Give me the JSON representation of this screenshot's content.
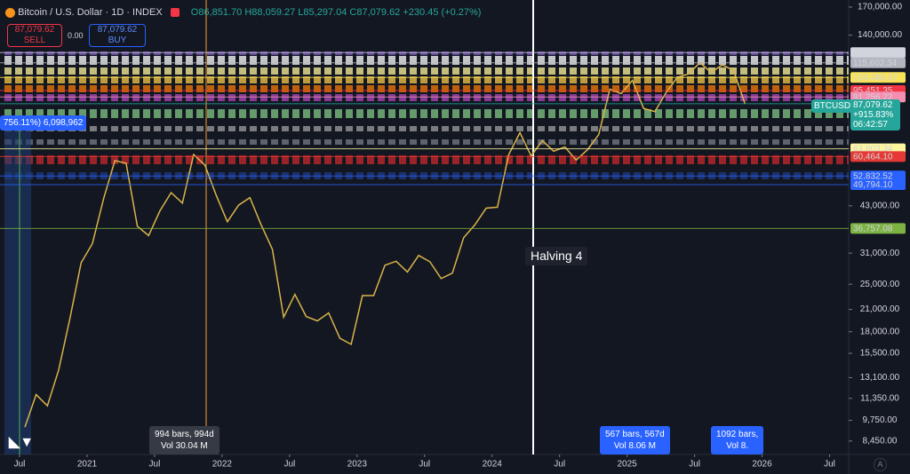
{
  "header": {
    "symbol": "Bitcoin / U.S. Dollar · 1D · INDEX",
    "open": "O86,851.70",
    "high": "H88,059.27",
    "low": "L85,297.04",
    "close": "C87,079.62",
    "change": "+230.45 (+0.27%)",
    "sell_price": "87,079.62",
    "sell": "SELL",
    "spread": "0.00",
    "buy_price": "87,079.62",
    "buy": "BUY"
  },
  "annotations": {
    "halving": "Halving 4",
    "range1_bars": "994 bars, 994d",
    "range1_vol": "Vol 30.04 M",
    "range2_bars": "567 bars, 567d",
    "range2_vol": "Vol 8.06 M",
    "range3_bars": "1092 bars,",
    "range3_vol": "Vol 8.",
    "measure": "756.11%) 6,098,962",
    "symbol_tag": "BTCUSD",
    "pct_change": "+915.83%",
    "countdown": "06:42:57"
  },
  "chart_data": {
    "type": "line",
    "log_scale": true,
    "color": "#d9b44a",
    "x": [
      "2020-07",
      "2020-08",
      "2020-09",
      "2020-10",
      "2020-11",
      "2020-12",
      "2021-01",
      "2021-02",
      "2021-03",
      "2021-04",
      "2021-05",
      "2021-06",
      "2021-07",
      "2021-08",
      "2021-09",
      "2021-10",
      "2021-11",
      "2021-12",
      "2022-01",
      "2022-02",
      "2022-03",
      "2022-04",
      "2022-05",
      "2022-06",
      "2022-07",
      "2022-08",
      "2022-09",
      "2022-10",
      "2022-11",
      "2022-12",
      "2023-01",
      "2023-02",
      "2023-03",
      "2023-04",
      "2023-05",
      "2023-06",
      "2023-07",
      "2023-08",
      "2023-09",
      "2023-10",
      "2023-11",
      "2023-12",
      "2024-01",
      "2024-02",
      "2024-03",
      "2024-04",
      "2024-05",
      "2024-06",
      "2024-07",
      "2024-08",
      "2024-09",
      "2024-10",
      "2024-11",
      "2024-12",
      "2025-01",
      "2025-02",
      "2025-03",
      "2025-04",
      "2025-05",
      "2025-06",
      "2025-07",
      "2025-08",
      "2025-09",
      "2025-10",
      "2025-11"
    ],
    "series": [
      {
        "name": "BTCUSD",
        "color": "#d9b44a",
        "values": [
          9300,
          11650,
          10780,
          13800,
          19700,
          29000,
          33100,
          45200,
          58800,
          57700,
          37300,
          35000,
          41500,
          47100,
          43800,
          61300,
          57000,
          46300,
          38500,
          43200,
          45500,
          37700,
          31800,
          19900,
          23300,
          20000,
          19400,
          20500,
          17200,
          16500,
          23100,
          23100,
          28500,
          29300,
          27200,
          30500,
          29200,
          26000,
          27000,
          34500,
          37700,
          42300,
          42600,
          61200,
          71300,
          60700,
          67500,
          62700,
          64600,
          59000,
          63300,
          70300,
          96400,
          93400,
          102400,
          84300,
          82500,
          94200,
          104600,
          107100,
          115700,
          108200,
          114000,
          109500,
          87080
        ]
      }
    ],
    "ylim": [
      7700,
      178500
    ],
    "yticks": [
      {
        "value": 170000,
        "label": "170,000.00"
      },
      {
        "value": 140000,
        "label": "140,000.00"
      },
      {
        "value": 43000,
        "label": "43,000.00"
      },
      {
        "value": 31000,
        "label": "31,000.00"
      },
      {
        "value": 25000,
        "label": "25,000.00"
      },
      {
        "value": 21000,
        "label": "21,000.00"
      },
      {
        "value": 18000,
        "label": "18,000.00"
      },
      {
        "value": 15500,
        "label": "15,500.00"
      },
      {
        "value": 13100,
        "label": "13,100.00"
      },
      {
        "value": 11350,
        "label": "11,350.00"
      },
      {
        "value": 9750,
        "label": "9,750.00"
      },
      {
        "value": 8450,
        "label": "8,450.00"
      }
    ],
    "xticks": [
      {
        "value": "2020-07",
        "label": "Jul"
      },
      {
        "value": "2021-01",
        "label": "2021"
      },
      {
        "value": "2021-07",
        "label": "Jul"
      },
      {
        "value": "2022-01",
        "label": "2022"
      },
      {
        "value": "2022-07",
        "label": "Jul"
      },
      {
        "value": "2023-01",
        "label": "2023"
      },
      {
        "value": "2023-07",
        "label": "Jul"
      },
      {
        "value": "2024-01",
        "label": "2024"
      },
      {
        "value": "2024-07",
        "label": "Jul"
      },
      {
        "value": "2025-01",
        "label": "2025"
      },
      {
        "value": "2025-07",
        "label": "Jul"
      },
      {
        "value": "2026-01",
        "label": "2026"
      },
      {
        "value": "2026-07",
        "label": "Jul"
      }
    ],
    "levels": [
      {
        "value": 124097.92,
        "label": "124,097.92",
        "color": "#d1d4dc"
      },
      {
        "value": 115602.34,
        "label": "115,602.34",
        "color": "#b2b5be"
      },
      {
        "value": 104488.37,
        "label": "104,488.37",
        "color": "#f7e35a"
      },
      {
        "value": 95451.35,
        "label": "95,451.35",
        "color": "#f23645"
      },
      {
        "value": 91256.22,
        "label": "91,256.22",
        "color": "#f48fb1"
      },
      {
        "value": 87079.62,
        "label": "87,079.62",
        "color": "#26a69a"
      },
      {
        "value": 63803.34,
        "label": "63,803.34",
        "color": "#fff59d"
      },
      {
        "value": 60464.1,
        "label": "60,464.10",
        "color": "#e53935"
      },
      {
        "value": 52832.52,
        "label": "52,832.52",
        "color": "#2962ff"
      },
      {
        "value": 49794.1,
        "label": "49,794.10",
        "color": "#2962ff"
      },
      {
        "value": 36757.08,
        "label": "36,757.08",
        "color": "#7cb342"
      }
    ]
  }
}
